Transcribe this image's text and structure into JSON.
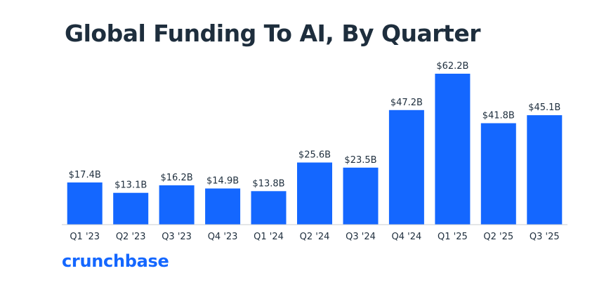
{
  "chart_data": {
    "type": "bar",
    "title": "Global Funding To AI, By Quarter",
    "categories": [
      "Q1 '23",
      "Q2 '23",
      "Q3 '23",
      "Q4 '23",
      "Q1 '24",
      "Q2 '24",
      "Q3 '24",
      "Q4 '24",
      "Q1 '25",
      "Q2 '25",
      "Q3 '25"
    ],
    "values": [
      17.4,
      13.1,
      16.2,
      14.9,
      13.8,
      25.6,
      23.5,
      47.2,
      62.2,
      41.8,
      45.1
    ],
    "value_labels": [
      "$17.4B",
      "$13.1B",
      "$16.2B",
      "$14.9B",
      "$13.8B",
      "$25.6B",
      "$23.5B",
      "$47.2B",
      "$62.2B",
      "$41.8B",
      "$45.1B"
    ],
    "unit": "USD billions",
    "xlabel": "",
    "ylabel": "",
    "ylim": [
      0,
      62.2
    ],
    "grid": false,
    "bar_color": "#1467ff"
  },
  "brand": {
    "name": "crunchbase",
    "color": "#1467ff"
  }
}
